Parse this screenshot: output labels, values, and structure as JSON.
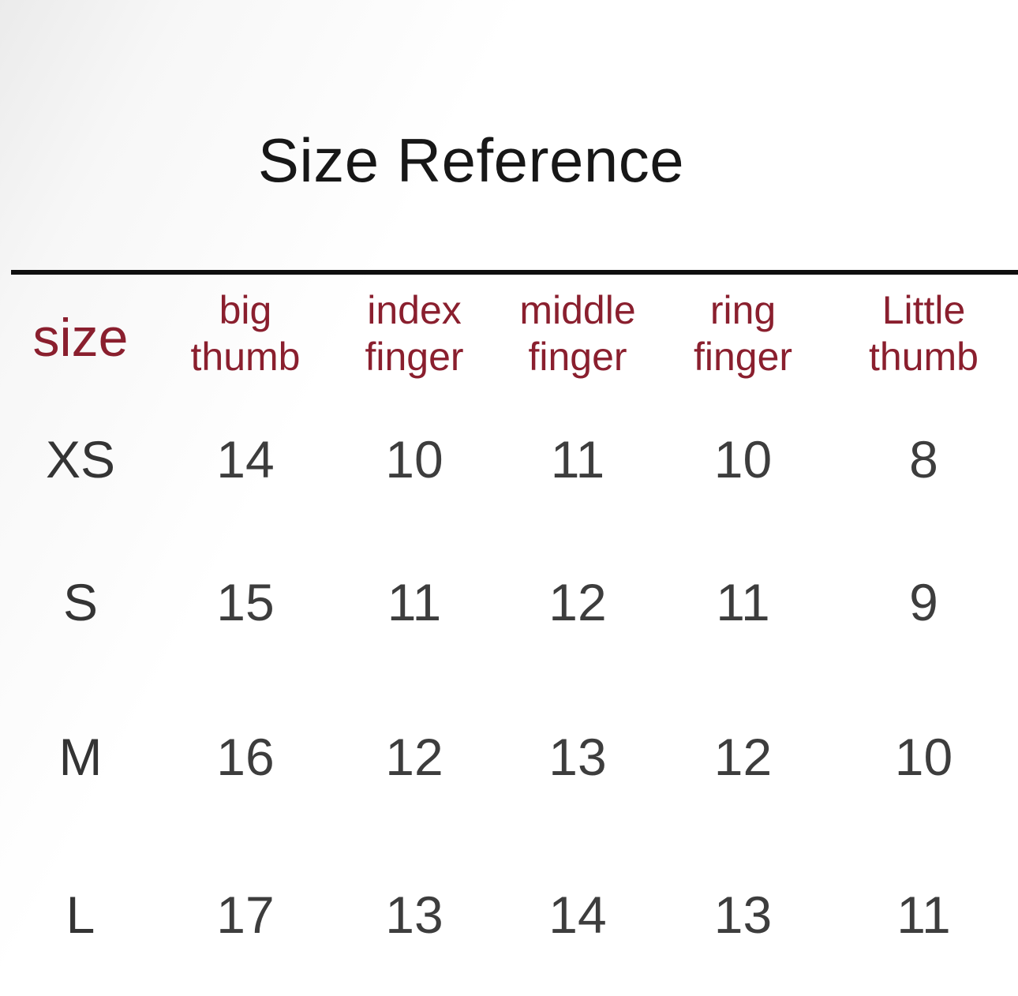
{
  "page": {
    "title": "Size Reference"
  },
  "colors": {
    "background": "#ffffff",
    "title_text": "#171717",
    "header_text": "#8a1f2e",
    "body_text": "#3d3d3d",
    "rule": "#0f0f0f"
  },
  "chart_data": {
    "type": "table",
    "title": "Size Reference",
    "columns": [
      "size",
      "big thumb",
      "index finger",
      "middle finger",
      "ring finger",
      "Little thumb"
    ],
    "rows": [
      {
        "size": "XS",
        "big_thumb": 14,
        "index_finger": 10,
        "middle_finger": 11,
        "ring_finger": 10,
        "little_thumb": 8
      },
      {
        "size": "S",
        "big_thumb": 15,
        "index_finger": 11,
        "middle_finger": 12,
        "ring_finger": 11,
        "little_thumb": 9
      },
      {
        "size": "M",
        "big_thumb": 16,
        "index_finger": 12,
        "middle_finger": 13,
        "ring_finger": 12,
        "little_thumb": 10
      },
      {
        "size": "L",
        "big_thumb": 17,
        "index_finger": 13,
        "middle_finger": 14,
        "ring_finger": 13,
        "little_thumb": 11
      }
    ]
  },
  "table": {
    "headers": [
      [
        "size"
      ],
      [
        "big",
        "thumb"
      ],
      [
        "index",
        "finger"
      ],
      [
        "middle",
        "finger"
      ],
      [
        "ring",
        "finger"
      ],
      [
        "Little",
        "thumb"
      ]
    ],
    "rows": [
      {
        "label": "XS",
        "values": [
          "14",
          "10",
          "11",
          "10",
          "8"
        ]
      },
      {
        "label": "S",
        "values": [
          "15",
          "11",
          "12",
          "11",
          "9"
        ]
      },
      {
        "label": "M",
        "values": [
          "16",
          "12",
          "13",
          "12",
          "10"
        ]
      },
      {
        "label": "L",
        "values": [
          "17",
          "13",
          "14",
          "13",
          "11"
        ]
      }
    ]
  }
}
